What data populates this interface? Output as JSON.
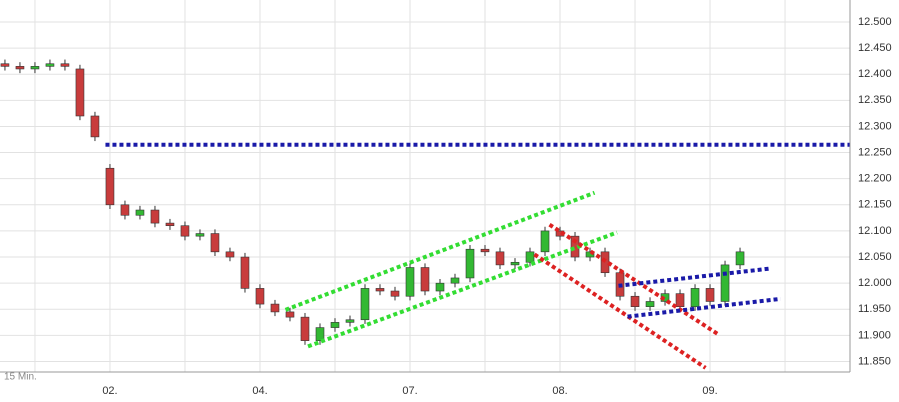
{
  "chart_data": {
    "type": "candlestick",
    "interval_label": "15 Min.",
    "xlim": [
      0.267,
      5.933
    ],
    "ylim": [
      11.83,
      12.542
    ],
    "xticks": [
      {
        "value": 1,
        "label": "02."
      },
      {
        "value": 2,
        "label": "04."
      },
      {
        "value": 3,
        "label": "07."
      },
      {
        "value": 4,
        "label": "08."
      },
      {
        "value": 5,
        "label": "09."
      }
    ],
    "xgrid": [
      0.5,
      1.5,
      2.5,
      3.5,
      4.5,
      5.5
    ],
    "yticks": [
      {
        "value": 12.5,
        "label": "12.500"
      },
      {
        "value": 12.45,
        "label": "12.450"
      },
      {
        "value": 12.4,
        "label": "12.400"
      },
      {
        "value": 12.35,
        "label": "12.350"
      },
      {
        "value": 12.3,
        "label": "12.300"
      },
      {
        "value": 12.25,
        "label": "12.250"
      },
      {
        "value": 12.2,
        "label": "12.200"
      },
      {
        "value": 12.15,
        "label": "12.150"
      },
      {
        "value": 12.1,
        "label": "12.100"
      },
      {
        "value": 12.05,
        "label": "12.050"
      },
      {
        "value": 12.0,
        "label": "12.000"
      },
      {
        "value": 11.95,
        "label": "11.950"
      },
      {
        "value": 11.9,
        "label": "11.900"
      },
      {
        "value": 11.85,
        "label": "11.850"
      }
    ],
    "grid": true,
    "up_color": "#33b833",
    "down_color": "#c83c3c",
    "x": [
      0.3,
      0.4,
      0.5,
      0.6,
      0.7,
      0.8,
      0.9,
      1.0,
      1.1,
      1.2,
      1.3,
      1.4,
      1.5,
      1.6,
      1.7,
      1.8,
      1.9,
      2.0,
      2.1,
      2.2,
      2.3,
      2.4,
      2.5,
      2.6,
      2.7,
      2.8,
      2.9,
      3.0,
      3.1,
      3.2,
      3.3,
      3.4,
      3.5,
      3.6,
      3.7,
      3.8,
      3.9,
      4.0,
      4.1,
      4.2,
      4.3,
      4.4,
      4.5,
      4.6,
      4.7,
      4.8,
      4.9,
      5.0,
      5.1,
      5.2
    ],
    "open": [
      12.42,
      12.415,
      12.41,
      12.415,
      12.42,
      12.41,
      12.32,
      12.22,
      12.15,
      12.13,
      12.14,
      12.115,
      12.11,
      12.09,
      12.095,
      12.06,
      12.05,
      11.99,
      11.96,
      11.945,
      11.935,
      11.89,
      11.915,
      11.925,
      11.93,
      11.99,
      11.985,
      11.975,
      12.03,
      11.985,
      12.0,
      12.01,
      12.065,
      12.06,
      12.035,
      12.04,
      12.06,
      12.1,
      12.09,
      12.05,
      12.06,
      12.02,
      11.975,
      11.955,
      11.965,
      11.98,
      11.955,
      11.99,
      11.965,
      12.035
    ],
    "high": [
      12.428,
      12.423,
      12.423,
      12.428,
      12.428,
      12.418,
      12.328,
      12.228,
      12.158,
      12.148,
      12.148,
      12.123,
      12.118,
      12.103,
      12.103,
      12.068,
      12.058,
      11.998,
      11.968,
      11.953,
      11.943,
      11.923,
      11.933,
      11.938,
      11.998,
      11.998,
      11.993,
      12.038,
      12.038,
      12.008,
      12.018,
      12.073,
      12.073,
      12.068,
      12.048,
      12.068,
      12.108,
      12.108,
      12.098,
      12.068,
      12.068,
      12.028,
      11.983,
      11.973,
      11.988,
      11.988,
      11.998,
      11.998,
      12.043,
      12.068
    ],
    "low": [
      12.407,
      12.402,
      12.402,
      12.407,
      12.407,
      12.312,
      12.272,
      12.142,
      12.122,
      12.122,
      12.107,
      12.102,
      12.082,
      12.082,
      12.052,
      12.042,
      11.982,
      11.952,
      11.937,
      11.927,
      11.882,
      11.882,
      11.907,
      11.917,
      11.922,
      11.977,
      11.967,
      11.967,
      11.977,
      11.977,
      11.992,
      12.002,
      12.052,
      12.027,
      12.027,
      12.032,
      12.052,
      12.082,
      12.042,
      12.042,
      12.012,
      11.967,
      11.947,
      11.947,
      11.957,
      11.947,
      11.947,
      11.957,
      11.957,
      12.027
    ],
    "close": [
      12.415,
      12.41,
      12.415,
      12.42,
      12.415,
      12.32,
      12.28,
      12.15,
      12.13,
      12.14,
      12.115,
      12.11,
      12.09,
      12.095,
      12.06,
      12.05,
      11.99,
      11.96,
      11.945,
      11.935,
      11.89,
      11.915,
      11.925,
      11.93,
      11.99,
      11.985,
      11.975,
      12.03,
      11.985,
      12.0,
      12.01,
      12.065,
      12.06,
      12.035,
      12.04,
      12.06,
      12.1,
      12.09,
      12.05,
      12.06,
      12.02,
      11.975,
      11.955,
      11.965,
      11.98,
      11.955,
      11.99,
      11.965,
      12.035,
      12.06
    ],
    "trend_lines": [
      {
        "color": "#1a1aa8",
        "x": [
          0.97,
          5.93
        ],
        "y": [
          12.265,
          12.265
        ]
      },
      {
        "color": "#33dd33",
        "x": [
          2.17,
          4.23
        ],
        "y": [
          11.949,
          12.173
        ]
      },
      {
        "color": "#33dd33",
        "x": [
          2.32,
          4.38
        ],
        "y": [
          11.879,
          12.097
        ]
      },
      {
        "color": "#dd2222",
        "x": [
          3.93,
          5.05
        ],
        "y": [
          12.112,
          11.903
        ]
      },
      {
        "color": "#dd2222",
        "x": [
          3.83,
          4.97
        ],
        "y": [
          12.055,
          11.838
        ]
      },
      {
        "color": "#1a1aa8",
        "x": [
          4.39,
          5.4
        ],
        "y": [
          11.995,
          12.028
        ]
      },
      {
        "color": "#1a1aa8",
        "x": [
          4.45,
          5.47
        ],
        "y": [
          11.936,
          11.97
        ]
      }
    ]
  }
}
